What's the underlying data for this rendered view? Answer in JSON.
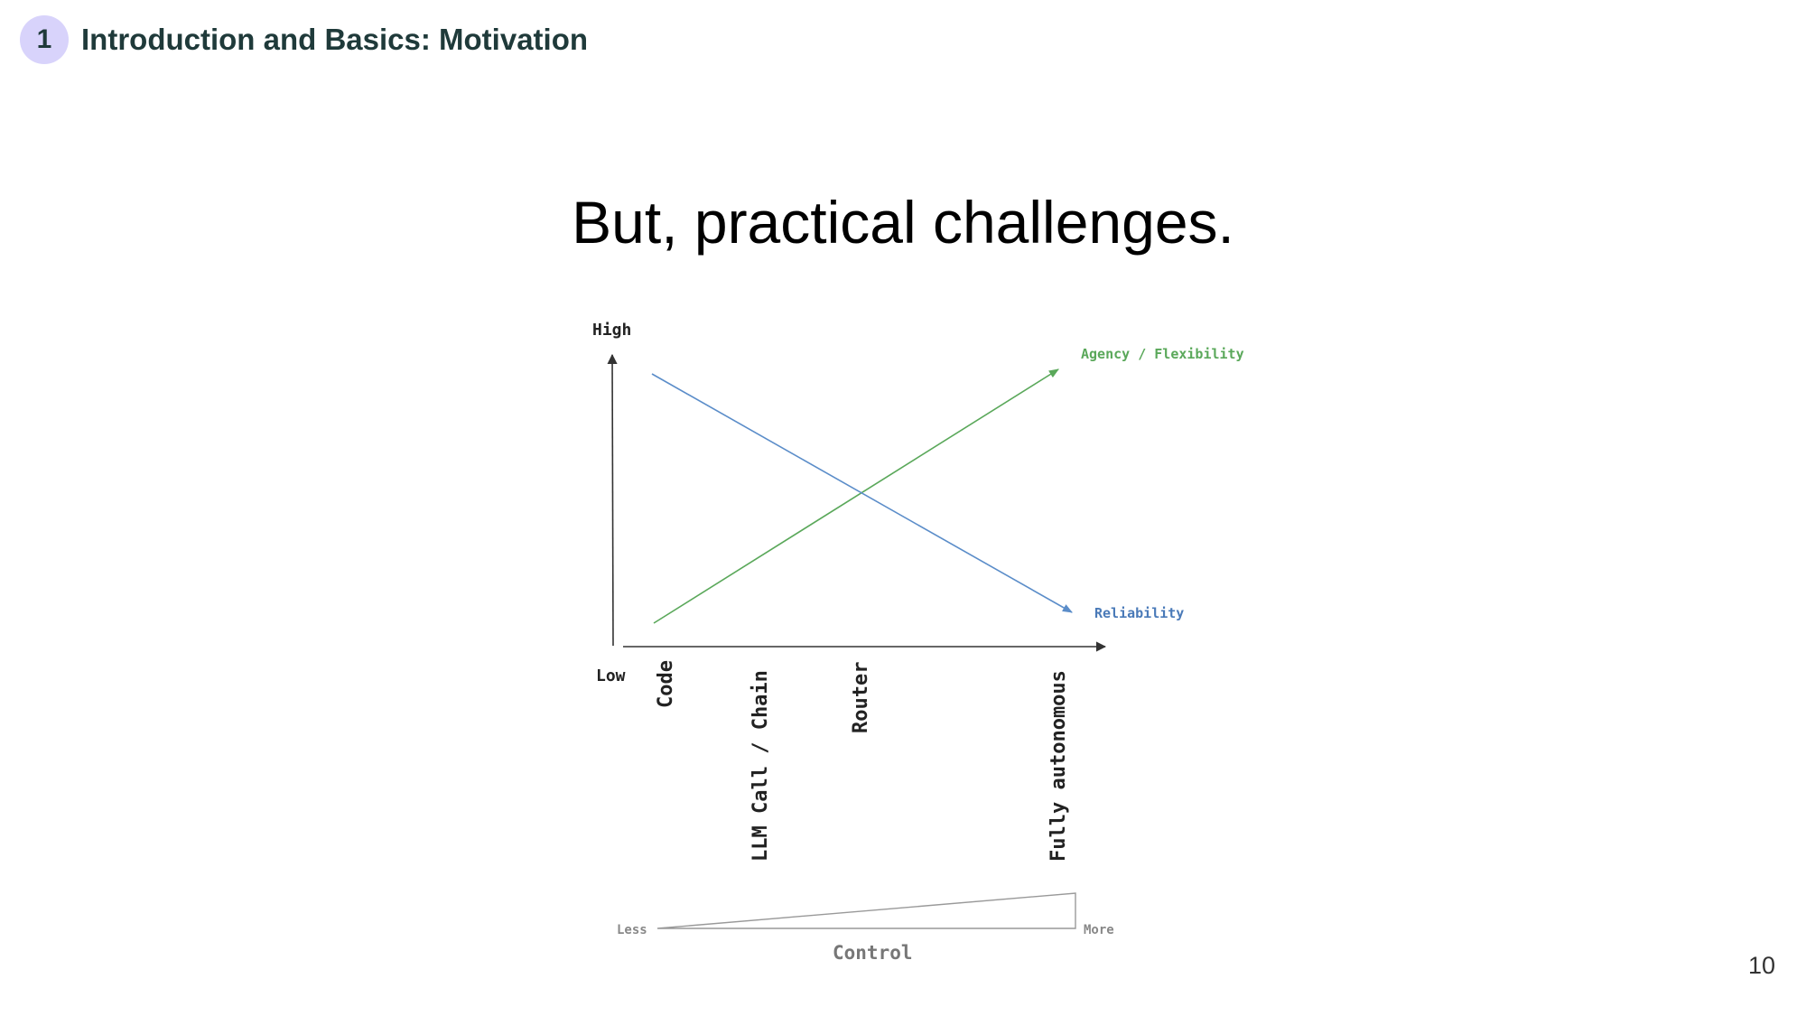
{
  "header": {
    "section_number": "1",
    "section_title": "Introduction and Basics: Motivation"
  },
  "slide": {
    "title": "But, practical challenges.",
    "page_number": "10"
  },
  "diagram": {
    "y_axis": {
      "high_label": "High",
      "low_label": "Low"
    },
    "x_categories": [
      "Code",
      "LLM Call / Chain",
      "Router",
      "Fully autonomous"
    ],
    "series": {
      "agency_label": "Agency / Flexibility",
      "reliability_label": "Reliability"
    },
    "control": {
      "less_label": "Less",
      "more_label": "More",
      "axis_label": "Control"
    },
    "colors": {
      "agency": "#5aa85a",
      "reliability": "#5b8dc9",
      "axis": "#333333",
      "control": "#999999",
      "header_badge": "#d8d3fb",
      "header_text": "#1f3a3a"
    }
  }
}
